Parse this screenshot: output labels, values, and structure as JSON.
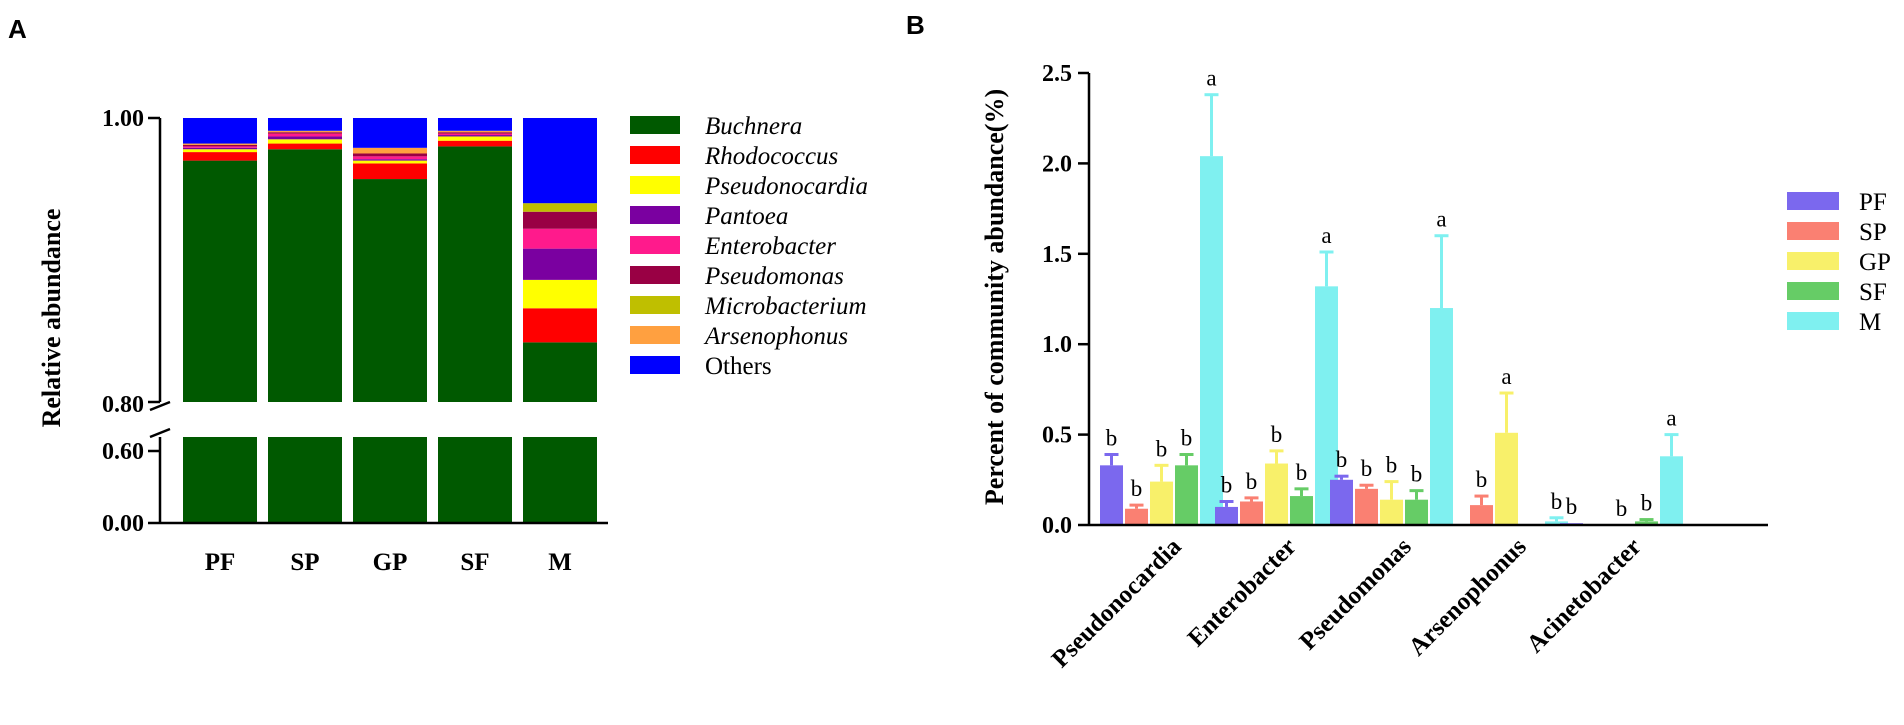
{
  "panel_a_letter": "A",
  "panel_b_letter": "B",
  "chart_data": [
    {
      "type": "bar",
      "stacked": true,
      "ylabel": "Relative abundance",
      "categories": [
        "PF",
        "SP",
        "GP",
        "SF",
        "M"
      ],
      "y_axis_break": [
        0.6,
        0.8
      ],
      "yticks": [
        "0.00",
        "0.60",
        "0.80",
        "1.00"
      ],
      "series": [
        {
          "name": "Buchnera",
          "italic": true,
          "color": "#005900",
          "values": [
            0.97,
            0.978,
            0.957,
            0.98,
            0.842
          ]
        },
        {
          "name": "Rhodococcus",
          "italic": true,
          "color": "#ff0000",
          "values": [
            0.006,
            0.004,
            0.011,
            0.004,
            0.024
          ]
        },
        {
          "name": "Pseudonocardia",
          "italic": true,
          "color": "#ffff00",
          "values": [
            0.002,
            0.003,
            0.002,
            0.003,
            0.02
          ]
        },
        {
          "name": "Pantoea",
          "italic": true,
          "color": "#7a00a0",
          "values": [
            0.001,
            0.002,
            0.001,
            0.001,
            0.022
          ]
        },
        {
          "name": "Enterobacter",
          "italic": true,
          "color": "#ff1a8c",
          "values": [
            0.001,
            0.002,
            0.002,
            0.001,
            0.014
          ]
        },
        {
          "name": "Pseudomonas",
          "italic": true,
          "color": "#990044",
          "values": [
            0.001,
            0.001,
            0.002,
            0.001,
            0.012
          ]
        },
        {
          "name": "Microbacterium",
          "italic": true,
          "color": "#bfbf00",
          "values": [
            0.0,
            0.0,
            0.0,
            0.0,
            0.006
          ]
        },
        {
          "name": "Arsenophonus",
          "italic": true,
          "color": "#ffa040",
          "values": [
            0.001,
            0.001,
            0.004,
            0.001,
            0.0
          ]
        },
        {
          "name": "Others",
          "italic": false,
          "color": "#0000ff",
          "values": [
            0.018,
            0.009,
            0.021,
            0.009,
            0.06
          ]
        }
      ]
    },
    {
      "type": "bar",
      "ylabel": "Percent of community abundance(%)",
      "ylim": [
        0,
        2.5
      ],
      "yticks": [
        "0.0",
        "0.5",
        "1.0",
        "1.5",
        "2.0",
        "2.5"
      ],
      "categories": [
        "Pseudonocardia",
        "Enterobacter",
        "Pseudomonas",
        "Arsenophonus",
        "Acinetobacter"
      ],
      "series": [
        {
          "name": "PF",
          "color": "#7b68ee",
          "values": [
            0.33,
            0.1,
            0.25,
            0.0,
            0.01
          ],
          "errors": [
            0.06,
            0.03,
            0.02,
            0.0,
            0.0
          ],
          "labels": [
            "b",
            "b",
            "b",
            "",
            "b"
          ]
        },
        {
          "name": "SP",
          "color": "#fa8072",
          "values": [
            0.09,
            0.13,
            0.2,
            0.11,
            0.0
          ],
          "errors": [
            0.02,
            0.02,
            0.02,
            0.05,
            0.0
          ],
          "labels": [
            "b",
            "b",
            "b",
            "b",
            ""
          ]
        },
        {
          "name": "GP",
          "color": "#f8f06a",
          "values": [
            0.24,
            0.34,
            0.14,
            0.51,
            0.0
          ],
          "errors": [
            0.09,
            0.07,
            0.1,
            0.22,
            0.0
          ],
          "labels": [
            "b",
            "b",
            "b",
            "a",
            "b"
          ]
        },
        {
          "name": "SF",
          "color": "#66cc66",
          "values": [
            0.33,
            0.16,
            0.14,
            0.0,
            0.02
          ],
          "errors": [
            0.06,
            0.04,
            0.05,
            0.0,
            0.01
          ],
          "labels": [
            "b",
            "b",
            "b",
            "",
            "b"
          ]
        },
        {
          "name": "M",
          "color": "#7ff0f0",
          "values": [
            2.04,
            1.32,
            1.2,
            0.02,
            0.38
          ],
          "errors": [
            0.34,
            0.19,
            0.4,
            0.02,
            0.12
          ],
          "labels": [
            "a",
            "a",
            "a",
            "b",
            "a"
          ]
        }
      ]
    }
  ]
}
